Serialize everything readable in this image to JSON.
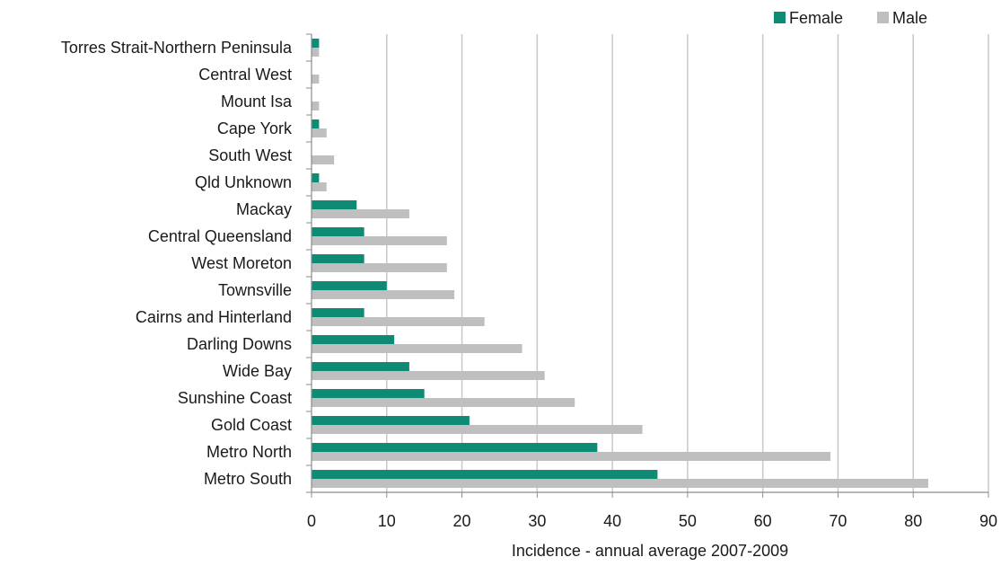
{
  "chart_data": {
    "type": "bar",
    "orientation": "horizontal",
    "title": "",
    "xlabel": "Incidence - annual average 2007-2009",
    "ylabel": "",
    "xlim": [
      0,
      90
    ],
    "xticks": [
      0,
      10,
      20,
      30,
      40,
      50,
      60,
      70,
      80,
      90
    ],
    "grid": "vertical",
    "legend_position": "top-right",
    "categories": [
      "Torres Strait-Northern Peninsula",
      "Central West",
      "Mount Isa",
      "Cape York",
      "South West",
      "Qld Unknown",
      "Mackay",
      "Central Queensland",
      "West Moreton",
      "Townsville",
      "Cairns and Hinterland",
      "Darling Downs",
      "Wide Bay",
      "Sunshine Coast",
      "Gold Coast",
      "Metro North",
      "Metro South"
    ],
    "series": [
      {
        "name": "Female",
        "color": "#0f8a74",
        "values": [
          1,
          0,
          0,
          1,
          0,
          1,
          6,
          7,
          7,
          10,
          7,
          11,
          13,
          15,
          21,
          38,
          46
        ]
      },
      {
        "name": "Male",
        "color": "#bfbfbf",
        "values": [
          1,
          1,
          1,
          2,
          3,
          2,
          13,
          18,
          18,
          19,
          23,
          28,
          31,
          35,
          44,
          69,
          82
        ]
      }
    ]
  }
}
